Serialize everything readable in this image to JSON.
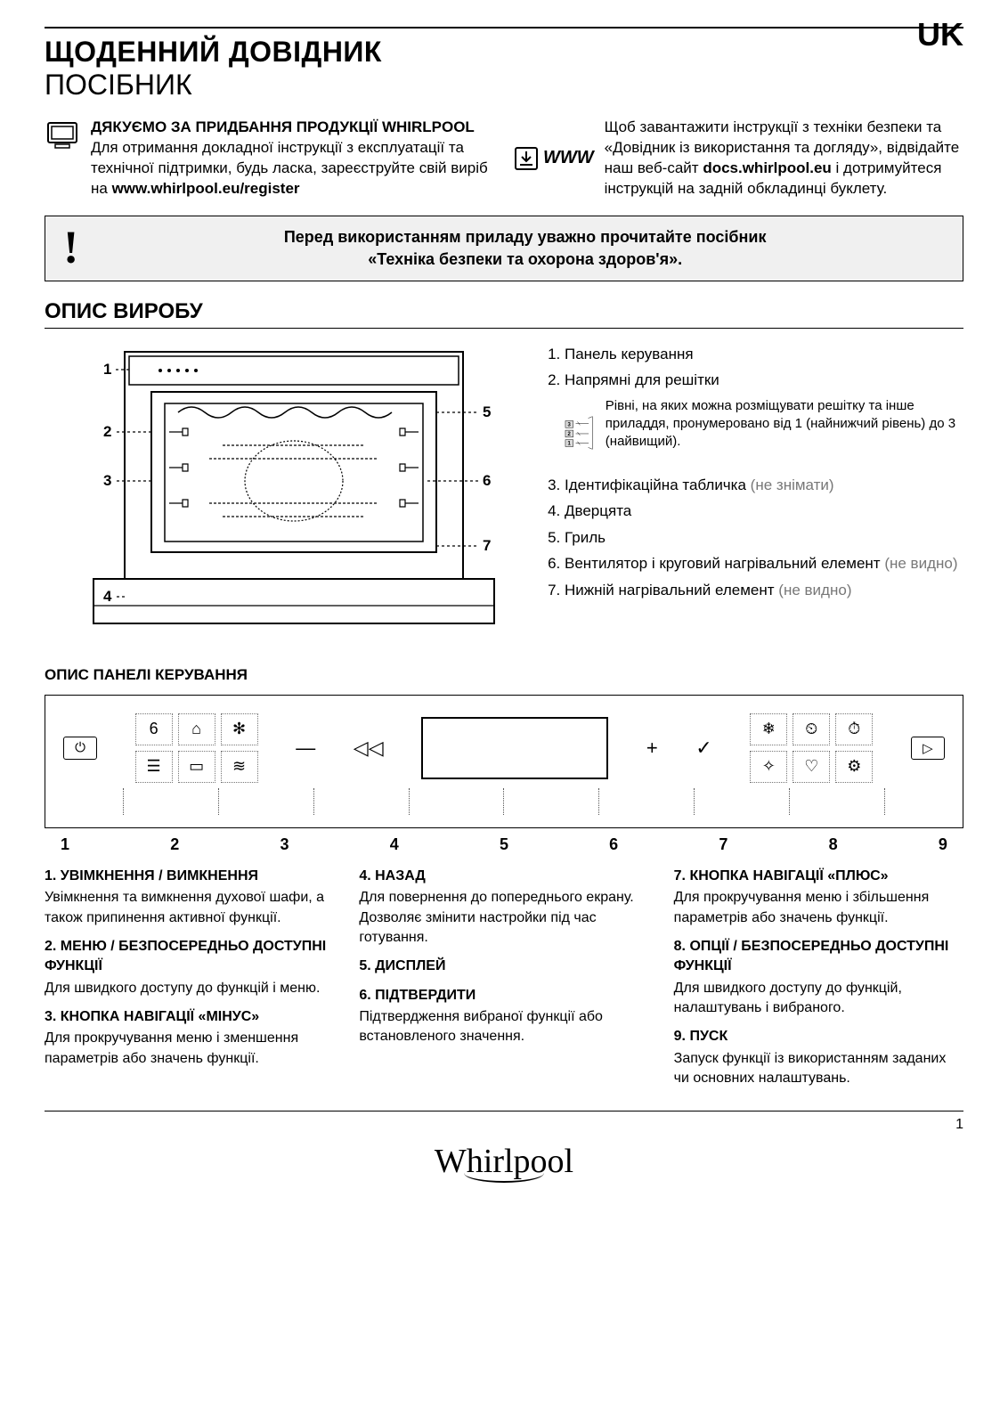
{
  "lang_tag": "UK",
  "title": {
    "line1": "ЩОДЕННИЙ ДОВІДНИК",
    "line2": "ПОСІБНИК"
  },
  "intro_left": {
    "heading": "ДЯКУЄМО ЗА ПРИДБАННЯ ПРОДУКЦІЇ WHIRLPOOL",
    "body": "Для отримання докладної інструкції з експлуатації та технічної підтримки, будь ласка, зареєструйте свій виріб на ",
    "link": "www.whirlpool.eu/register"
  },
  "intro_right": {
    "www_label": "WWW",
    "body_pre": "Щоб завантажити інструкції з техніки безпеки та «Довідник із використання та догляду», відвідайте наш веб-сайт ",
    "link": "docs.whirlpool.eu",
    "body_post": " і дотримуйтеся інструкцій на задній обкладинці буклету."
  },
  "warning": {
    "line1": "Перед використанням приладу уважно прочитайте посібник",
    "line2": "«Техніка безпеки та охорона здоров'я»."
  },
  "section1_title": "ОПИС ВИРОБУ",
  "diagram_labels": [
    "1",
    "2",
    "3",
    "4",
    "5",
    "6",
    "7"
  ],
  "shelf_diag_labels": [
    "3",
    "2",
    "1"
  ],
  "legend": [
    {
      "n": "1",
      "text": "Панель керування"
    },
    {
      "n": "2",
      "text": "Напрямні для решітки",
      "inset": "Рівні, на яких можна розміщувати решітку та інше приладдя, пронумеровано від 1 (найнижчий рівень) до 3 (найвищий)."
    },
    {
      "n": "3",
      "text": "Ідентифікаційна табличка",
      "sub": "(не знімати)"
    },
    {
      "n": "4",
      "text": "Дверцята"
    },
    {
      "n": "5",
      "text": "Гриль"
    },
    {
      "n": "6",
      "text": "Вентилятор і круговий нагрівальний елемент",
      "sub": "(не видно)"
    },
    {
      "n": "7",
      "text": "Нижній нагрівальний елемент",
      "sub": "(не видно)"
    }
  ],
  "panel_heading": "ОПИС ПАНЕЛІ КЕРУВАННЯ",
  "panel": {
    "power": "⏻",
    "menu_icons": [
      "6",
      "⌂",
      "✻",
      "☰",
      "▭",
      "≋"
    ],
    "minus": "—",
    "back": "◁◁",
    "plus": "+",
    "ok": "✓",
    "opt_icons": [
      "❄",
      "⏲",
      "⏱",
      "✧",
      "♡",
      "⚙"
    ],
    "start": "▷",
    "numbers": [
      "1",
      "2",
      "3",
      "4",
      "5",
      "6",
      "7",
      "8",
      "9"
    ]
  },
  "desc": [
    [
      {
        "h": "1. УВІМКНЕННЯ / ВИМКНЕННЯ",
        "p": "Увімкнення та вимкнення духової шафи, а також припинення активної функції."
      },
      {
        "h": "2. МЕНЮ / БЕЗПОСЕРЕДНЬО ДОСТУПНІ ФУНКЦІЇ",
        "p": "Для швидкого доступу до функцій і меню."
      },
      {
        "h": "3. КНОПКА НАВІГАЦІЇ «МІНУС»",
        "p": "Для прокручування меню і зменшення параметрів або значень функції."
      }
    ],
    [
      {
        "h": "4. НАЗАД",
        "p": "Для повернення до попереднього екрану. Дозволяє змінити настройки під час готування."
      },
      {
        "h": "5. ДИСПЛЕЙ",
        "p": ""
      },
      {
        "h": "6. ПІДТВЕРДИТИ",
        "p": "Підтвердження вибраної функції або встановленого значення."
      }
    ],
    [
      {
        "h": "7. КНОПКА НАВІГАЦІЇ «ПЛЮС»",
        "p": "Для прокручування меню і збільшення параметрів або значень функції."
      },
      {
        "h": "8. ОПЦІЇ / БЕЗПОСЕРЕДНЬО ДОСТУПНІ ФУНКЦІЇ",
        "p": "Для швидкого доступу до функцій, налаштувань і вибраного."
      },
      {
        "h": "9. ПУСК",
        "p": "Запуск функції із використанням заданих чи основних налаштувань."
      }
    ]
  ],
  "page_number": "1",
  "brand": "Whirlpool"
}
